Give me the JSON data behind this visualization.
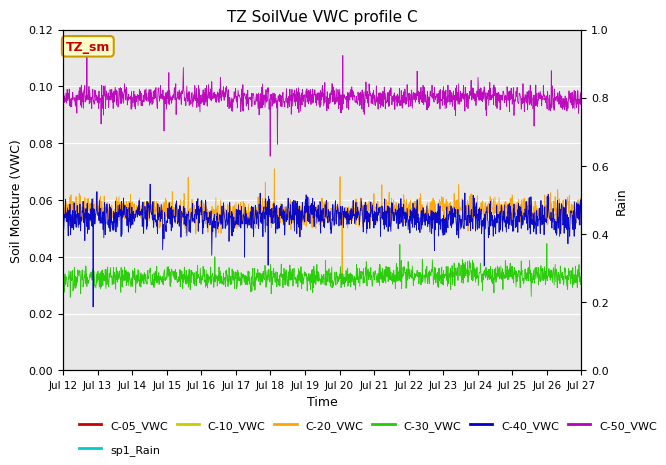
{
  "title": "TZ SoilVue VWC profile C",
  "xlabel": "Time",
  "ylabel_left": "Soil Moisture (VWC)",
  "ylabel_right": "Rain",
  "ylim_left": [
    0.0,
    0.12
  ],
  "ylim_right": [
    0.0,
    1.0
  ],
  "n_points": 1500,
  "x_tick_labels": [
    "Jul 12",
    "Jul 13",
    "Jul 14",
    "Jul 15",
    "Jul 16",
    "Jul 17",
    "Jul 18",
    "Jul 19",
    "Jul 20",
    "Jul 21",
    "Jul 22",
    "Jul 23",
    "Jul 24",
    "Jul 25",
    "Jul 26",
    "Jul 27"
  ],
  "series": {
    "C-20_VWC": {
      "color": "#FFA500",
      "mean": 0.056,
      "base_noise": 0.0025,
      "spike_mag": 0.008,
      "n_spikes": 20
    },
    "C-30_VWC": {
      "color": "#22CC00",
      "mean": 0.033,
      "base_noise": 0.002,
      "spike_mag": 0.006,
      "n_spikes": 15
    },
    "C-40_VWC": {
      "color": "#0000CC",
      "mean": 0.054,
      "base_noise": 0.003,
      "spike_mag": 0.012,
      "n_spikes": 20
    },
    "C-50_VWC": {
      "color": "#BB00BB",
      "mean": 0.096,
      "base_noise": 0.002,
      "spike_mag": 0.01,
      "n_spikes": 25
    }
  },
  "legend_entries": [
    {
      "label": "C-05_VWC",
      "color": "#CC0000"
    },
    {
      "label": "C-10_VWC",
      "color": "#CCCC00"
    },
    {
      "label": "C-20_VWC",
      "color": "#FFA500"
    },
    {
      "label": "C-30_VWC",
      "color": "#22CC00"
    },
    {
      "label": "C-40_VWC",
      "color": "#0000CC"
    },
    {
      "label": "C-50_VWC",
      "color": "#BB00BB"
    },
    {
      "label": "sp1_Rain",
      "color": "#00CCCC"
    }
  ],
  "rain_color": "#CCCC00",
  "box_label": "TZ_sm",
  "box_color": "#FFFFCC",
  "box_border": "#CC9900",
  "box_text_color": "#CC0000",
  "bg_color": "#E8E8E8",
  "fig_bg_color": "#FFFFFF",
  "seed": 7
}
